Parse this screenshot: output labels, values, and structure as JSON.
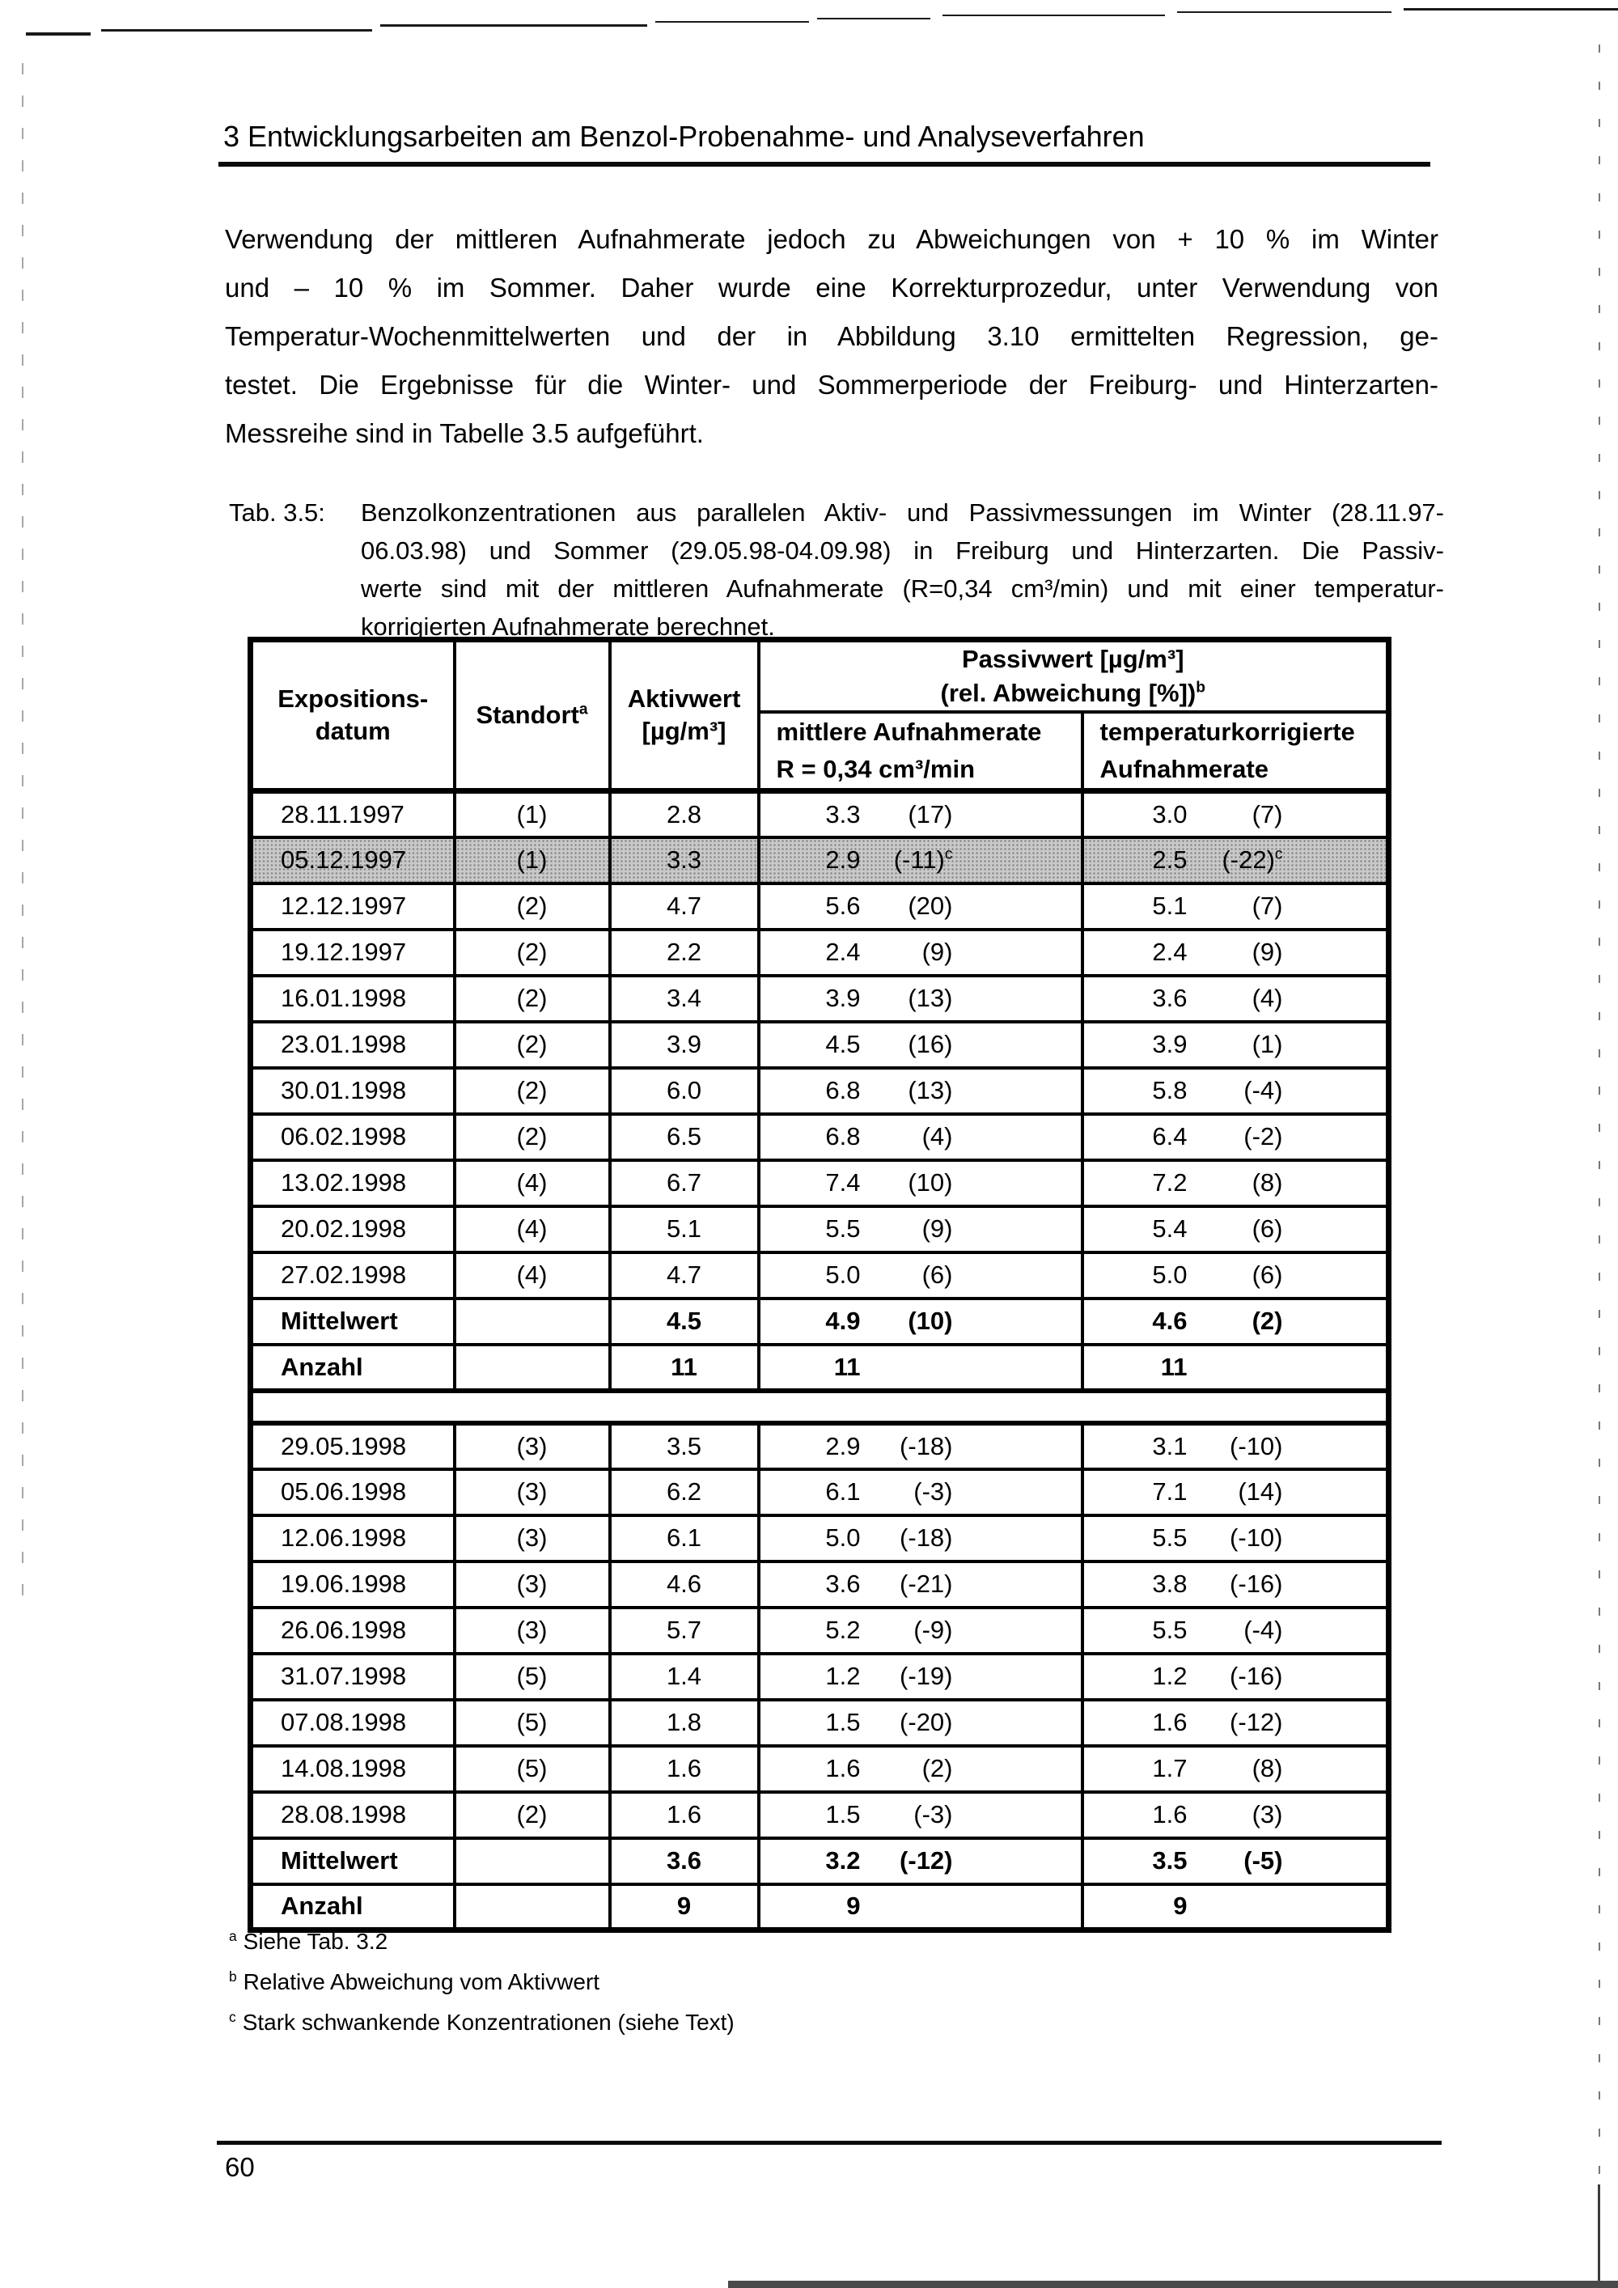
{
  "page": {
    "chapter_header": "3 Entwicklungsarbeiten am Benzol-Probenahme- und Analyseverfahren",
    "page_number": "60"
  },
  "paragraph": {
    "lines": [
      "Verwendung der mittleren Aufnahmerate jedoch zu Abweichungen von + 10 % im Winter",
      "und – 10 % im Sommer. Daher wurde eine Korrekturprozedur, unter Verwendung von",
      "Temperatur-Wochenmittelwerten und der in Abbildung 3.10 ermittelten Regression, ge-",
      "testet. Die Ergebnisse für die Winter- und Sommerperiode der Freiburg- und Hinterzarten-",
      "Messreihe sind in Tabelle 3.5 aufgeführt."
    ]
  },
  "caption": {
    "label": "Tab. 3.5:",
    "lines": [
      "Benzolkonzentrationen aus parallelen Aktiv- und Passivmessungen im Winter (28.11.97-",
      "06.03.98) und Sommer (29.05.98-04.09.98) in Freiburg und Hinterzarten. Die Passiv-",
      "werte sind mit der mittleren Aufnahmerate (R=0,34 cm³/min) und mit einer temperatur-",
      "korrigierten Aufnahmerate berechnet."
    ]
  },
  "table": {
    "header": {
      "col_date_line1": "Expositions-",
      "col_date_line2": "datum",
      "col_site": "Standort",
      "col_site_sup": "a",
      "col_aktiv_line1": "Aktivwert",
      "col_aktiv_line2": "[µg/m³]",
      "group_line1": "Passivwert [µg/m³]",
      "group_line2": "(rel. Abweichung [%])",
      "group_sup": "b",
      "sub1_line1": "mittlere Aufnahmerate",
      "sub1_line2": "R = 0,34 cm³/min",
      "sub2_line1": "temperaturkorrigierte",
      "sub2_line2": "Aufnahmerate"
    },
    "winter": {
      "rows": [
        {
          "date": "28.11.1997",
          "site": "(1)",
          "aktiv": "2.8",
          "p1v": "3.3",
          "p1d": "(17)",
          "p2v": "3.0",
          "p2d": "(7)"
        },
        {
          "date": "05.12.1997",
          "site": "(1)",
          "aktiv": "3.3",
          "p1v": "2.9",
          "p1d": "(-11)",
          "p1sup": "c",
          "p2v": "2.5",
          "p2d": "(-22)",
          "p2sup": "c",
          "highlight": true
        },
        {
          "date": "12.12.1997",
          "site": "(2)",
          "aktiv": "4.7",
          "p1v": "5.6",
          "p1d": "(20)",
          "p2v": "5.1",
          "p2d": "(7)"
        },
        {
          "date": "19.12.1997",
          "site": "(2)",
          "aktiv": "2.2",
          "p1v": "2.4",
          "p1d": "(9)",
          "p2v": "2.4",
          "p2d": "(9)"
        },
        {
          "date": "16.01.1998",
          "site": "(2)",
          "aktiv": "3.4",
          "p1v": "3.9",
          "p1d": "(13)",
          "p2v": "3.6",
          "p2d": "(4)"
        },
        {
          "date": "23.01.1998",
          "site": "(2)",
          "aktiv": "3.9",
          "p1v": "4.5",
          "p1d": "(16)",
          "p2v": "3.9",
          "p2d": "(1)"
        },
        {
          "date": "30.01.1998",
          "site": "(2)",
          "aktiv": "6.0",
          "p1v": "6.8",
          "p1d": "(13)",
          "p2v": "5.8",
          "p2d": "(-4)"
        },
        {
          "date": "06.02.1998",
          "site": "(2)",
          "aktiv": "6.5",
          "p1v": "6.8",
          "p1d": "(4)",
          "p2v": "6.4",
          "p2d": "(-2)"
        },
        {
          "date": "13.02.1998",
          "site": "(4)",
          "aktiv": "6.7",
          "p1v": "7.4",
          "p1d": "(10)",
          "p2v": "7.2",
          "p2d": "(8)"
        },
        {
          "date": "20.02.1998",
          "site": "(4)",
          "aktiv": "5.1",
          "p1v": "5.5",
          "p1d": "(9)",
          "p2v": "5.4",
          "p2d": "(6)"
        },
        {
          "date": "27.02.1998",
          "site": "(4)",
          "aktiv": "4.7",
          "p1v": "5.0",
          "p1d": "(6)",
          "p2v": "5.0",
          "p2d": "(6)"
        }
      ],
      "mittelwert": {
        "label": "Mittelwert",
        "site": "",
        "aktiv": "4.5",
        "p1v": "4.9",
        "p1d": "(10)",
        "p2v": "4.6",
        "p2d": "(2)"
      },
      "anzahl": {
        "label": "Anzahl",
        "site": "",
        "aktiv": "11",
        "p1v": "11",
        "p1d": "",
        "p2v": "11",
        "p2d": ""
      }
    },
    "sommer": {
      "rows": [
        {
          "date": "29.05.1998",
          "site": "(3)",
          "aktiv": "3.5",
          "p1v": "2.9",
          "p1d": "(-18)",
          "p2v": "3.1",
          "p2d": "(-10)"
        },
        {
          "date": "05.06.1998",
          "site": "(3)",
          "aktiv": "6.2",
          "p1v": "6.1",
          "p1d": "(-3)",
          "p2v": "7.1",
          "p2d": "(14)"
        },
        {
          "date": "12.06.1998",
          "site": "(3)",
          "aktiv": "6.1",
          "p1v": "5.0",
          "p1d": "(-18)",
          "p2v": "5.5",
          "p2d": "(-10)"
        },
        {
          "date": "19.06.1998",
          "site": "(3)",
          "aktiv": "4.6",
          "p1v": "3.6",
          "p1d": "(-21)",
          "p2v": "3.8",
          "p2d": "(-16)"
        },
        {
          "date": "26.06.1998",
          "site": "(3)",
          "aktiv": "5.7",
          "p1v": "5.2",
          "p1d": "(-9)",
          "p2v": "5.5",
          "p2d": "(-4)"
        },
        {
          "date": "31.07.1998",
          "site": "(5)",
          "aktiv": "1.4",
          "p1v": "1.2",
          "p1d": "(-19)",
          "p2v": "1.2",
          "p2d": "(-16)"
        },
        {
          "date": "07.08.1998",
          "site": "(5)",
          "aktiv": "1.8",
          "p1v": "1.5",
          "p1d": "(-20)",
          "p2v": "1.6",
          "p2d": "(-12)"
        },
        {
          "date": "14.08.1998",
          "site": "(5)",
          "aktiv": "1.6",
          "p1v": "1.6",
          "p1d": "(2)",
          "p2v": "1.7",
          "p2d": "(8)"
        },
        {
          "date": "28.08.1998",
          "site": "(2)",
          "aktiv": "1.6",
          "p1v": "1.5",
          "p1d": "(-3)",
          "p2v": "1.6",
          "p2d": "(3)"
        }
      ],
      "mittelwert": {
        "label": "Mittelwert",
        "site": "",
        "aktiv": "3.6",
        "p1v": "3.2",
        "p1d": "(-12)",
        "p2v": "3.5",
        "p2d": "(-5)"
      },
      "anzahl": {
        "label": "Anzahl",
        "site": "",
        "aktiv": "9",
        "p1v": "9",
        "p1d": "",
        "p2v": "9",
        "p2d": ""
      }
    }
  },
  "footnotes": [
    {
      "sup": "a",
      "text": "Siehe Tab. 3.2"
    },
    {
      "sup": "b",
      "text": "Relative Abweichung vom Aktivwert"
    },
    {
      "sup": "c",
      "text": "Stark schwankende Konzentrationen (siehe Text)"
    }
  ]
}
